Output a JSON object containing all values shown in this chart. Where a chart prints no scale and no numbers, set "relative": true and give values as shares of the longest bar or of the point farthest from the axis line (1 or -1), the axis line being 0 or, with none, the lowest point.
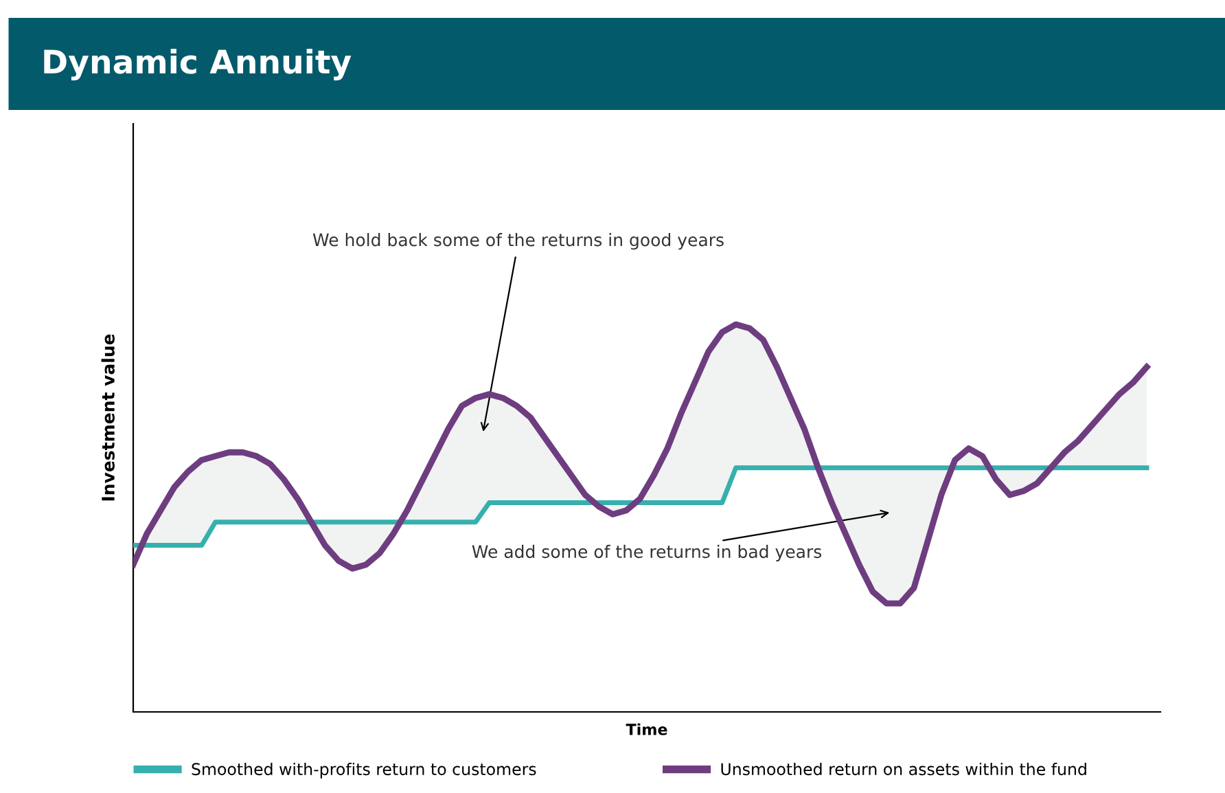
{
  "chart_data": {
    "type": "line",
    "title": "Dynamic Annuity",
    "xlabel": "Time",
    "ylabel": "Investment value",
    "relative": true,
    "legend": "bottom",
    "categories": [
      null,
      null,
      null,
      null,
      null,
      null,
      null,
      null,
      null,
      null,
      null,
      null,
      null,
      null,
      null,
      null,
      null,
      null,
      null,
      null,
      null,
      null,
      null,
      null,
      null,
      null,
      null,
      null,
      null,
      null,
      null,
      null,
      null,
      null,
      null,
      null,
      null,
      null,
      null,
      null,
      null,
      null,
      null,
      null,
      null,
      null,
      null,
      null,
      null,
      null,
      null,
      null,
      null,
      null,
      null,
      null,
      null,
      null,
      null,
      null,
      null,
      null,
      null,
      null,
      null,
      null,
      null,
      null,
      null,
      null,
      null,
      null,
      null,
      null,
      null
    ],
    "series": [
      {
        "name": "Smoothed with-profits return to customers",
        "color": "#35b0ae",
        "values": [
          0.43,
          0.43,
          0.43,
          0.43,
          0.43,
          0.43,
          0.49,
          0.49,
          0.49,
          0.49,
          0.49,
          0.49,
          0.49,
          0.49,
          0.49,
          0.49,
          0.49,
          0.49,
          0.49,
          0.49,
          0.49,
          0.49,
          0.49,
          0.49,
          0.49,
          0.49,
          0.54,
          0.54,
          0.54,
          0.54,
          0.54,
          0.54,
          0.54,
          0.54,
          0.54,
          0.54,
          0.54,
          0.54,
          0.54,
          0.54,
          0.54,
          0.54,
          0.54,
          0.54,
          0.63,
          0.63,
          0.63,
          0.63,
          0.63,
          0.63,
          0.63,
          0.63,
          0.63,
          0.63,
          0.63,
          0.63,
          0.63,
          0.63,
          0.63,
          0.63,
          0.63,
          0.63,
          0.63,
          0.63,
          0.63,
          0.63,
          0.63,
          0.63,
          0.63,
          0.63,
          0.63,
          0.63,
          0.63,
          0.63,
          0.63
        ]
      },
      {
        "name": "Unsmoothed return on assets within the fund",
        "color": "#6e3d80",
        "values": [
          0.38,
          0.46,
          0.52,
          0.58,
          0.62,
          0.65,
          0.66,
          0.67,
          0.67,
          0.66,
          0.64,
          0.6,
          0.55,
          0.49,
          0.43,
          0.39,
          0.37,
          0.38,
          0.41,
          0.46,
          0.52,
          0.59,
          0.66,
          0.73,
          0.79,
          0.81,
          0.82,
          0.81,
          0.79,
          0.76,
          0.71,
          0.66,
          0.61,
          0.56,
          0.53,
          0.51,
          0.52,
          0.55,
          0.61,
          0.68,
          0.77,
          0.85,
          0.93,
          0.98,
          1.0,
          0.99,
          0.96,
          0.89,
          0.81,
          0.73,
          0.63,
          0.54,
          0.46,
          0.38,
          0.31,
          0.28,
          0.28,
          0.32,
          0.44,
          0.56,
          0.65,
          0.68,
          0.66,
          0.6,
          0.56,
          0.57,
          0.59,
          0.63,
          0.67,
          0.7,
          0.74,
          0.78,
          0.82,
          0.85,
          0.89
        ]
      }
    ],
    "annotations": [
      "We hold back some of the returns in good years",
      "We add some of the returns in bad years"
    ]
  }
}
